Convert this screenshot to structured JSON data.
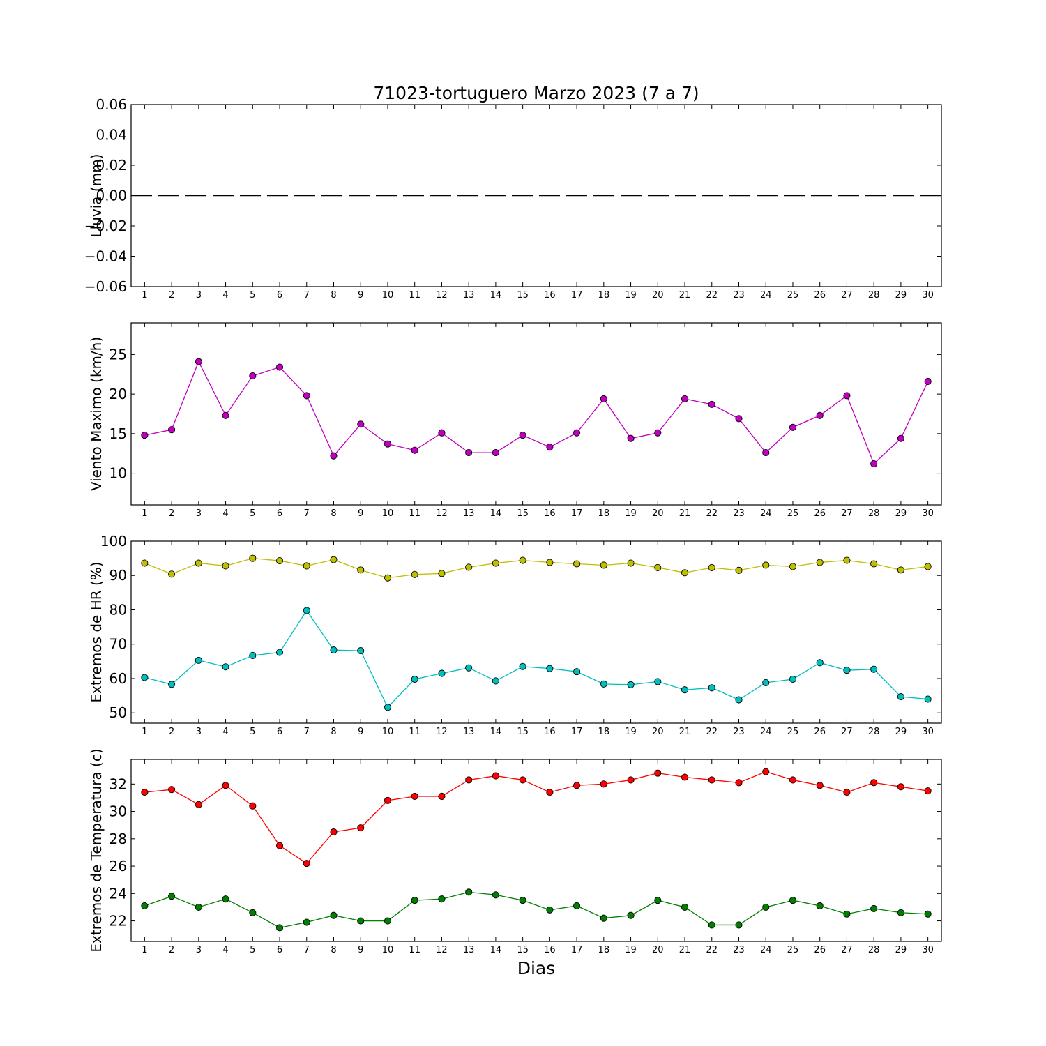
{
  "figure": {
    "title": "71023-tortuguero Marzo 2023  (7 a 7)",
    "xlabel": "Dias"
  },
  "chart_data": [
    {
      "id": "lluvia",
      "type": "line",
      "ylabel": "Lluvia (mm)",
      "x": [
        1,
        2,
        3,
        4,
        5,
        6,
        7,
        8,
        9,
        10,
        11,
        12,
        13,
        14,
        15,
        16,
        17,
        18,
        19,
        20,
        21,
        22,
        23,
        24,
        25,
        26,
        27,
        28,
        29,
        30
      ],
      "xlim": [
        0.5,
        30.5
      ],
      "ylim": [
        -0.06,
        0.06
      ],
      "yticks": [
        0.06,
        0.04,
        0.02,
        0.0,
        -0.02,
        -0.04,
        -0.06
      ],
      "ytick_labels": [
        "0.06",
        "0.04",
        "0.02",
        "0.00",
        "−0.02",
        "−0.04",
        "−0.06"
      ],
      "series": [
        {
          "color": "#000000",
          "style": "dashed",
          "marker": false,
          "values": [
            0,
            0,
            0,
            0,
            0,
            0,
            0,
            0,
            0,
            0,
            0,
            0,
            0,
            0,
            0,
            0,
            0,
            0,
            0,
            0,
            0,
            0,
            0,
            0,
            0,
            0,
            0,
            0,
            0,
            0
          ]
        }
      ]
    },
    {
      "id": "viento",
      "type": "line",
      "ylabel": "Viento Maximo (km/h)",
      "x": [
        1,
        2,
        3,
        4,
        5,
        6,
        7,
        8,
        9,
        10,
        11,
        12,
        13,
        14,
        15,
        16,
        17,
        18,
        19,
        20,
        21,
        22,
        23,
        24,
        25,
        26,
        27,
        28,
        29,
        30
      ],
      "xlim": [
        0.5,
        30.5
      ],
      "ylim": [
        6,
        29
      ],
      "yticks": [
        10,
        15,
        20,
        25
      ],
      "ytick_labels": [
        "10",
        "15",
        "20",
        "25"
      ],
      "series": [
        {
          "color": "#bf00bf",
          "marker": true,
          "values": [
            14.8,
            15.5,
            24.1,
            17.3,
            22.3,
            23.4,
            19.8,
            12.2,
            16.2,
            13.7,
            12.9,
            15.1,
            12.6,
            12.6,
            14.8,
            13.3,
            15.1,
            19.4,
            14.4,
            15.1,
            19.4,
            18.7,
            16.9,
            12.6,
            15.8,
            17.3,
            19.8,
            11.2,
            14.4,
            21.6
          ]
        }
      ]
    },
    {
      "id": "humedad",
      "type": "line",
      "ylabel": "Extremos de HR (%)",
      "x": [
        1,
        2,
        3,
        4,
        5,
        6,
        7,
        8,
        9,
        10,
        11,
        12,
        13,
        14,
        15,
        16,
        17,
        18,
        19,
        20,
        21,
        22,
        23,
        24,
        25,
        26,
        27,
        28,
        29,
        30
      ],
      "xlim": [
        0.5,
        30.5
      ],
      "ylim": [
        47,
        100
      ],
      "yticks": [
        50,
        60,
        70,
        80,
        90,
        100
      ],
      "ytick_labels": [
        "50",
        "60",
        "70",
        "80",
        "90",
        "100"
      ],
      "series": [
        {
          "color": "#bfbf00",
          "marker": true,
          "values": [
            93.6,
            90.4,
            93.6,
            92.8,
            95.0,
            94.3,
            92.8,
            94.6,
            91.6,
            89.3,
            90.3,
            90.6,
            92.4,
            93.6,
            94.4,
            93.8,
            93.4,
            93.0,
            93.6,
            92.3,
            90.8,
            92.3,
            91.5,
            93.0,
            92.6,
            93.8,
            94.4,
            93.4,
            91.6,
            92.6
          ]
        },
        {
          "color": "#00bfbf",
          "marker": true,
          "values": [
            60.3,
            58.3,
            65.3,
            63.4,
            66.7,
            67.6,
            79.8,
            68.3,
            68.1,
            51.6,
            59.8,
            61.5,
            63.1,
            59.3,
            63.5,
            62.9,
            62.0,
            58.4,
            58.2,
            59.1,
            56.7,
            57.3,
            53.8,
            58.8,
            59.8,
            64.6,
            62.4,
            62.7,
            54.7,
            54.0
          ]
        }
      ]
    },
    {
      "id": "temperatura",
      "type": "line",
      "ylabel": "Extremos de Temperatura (c)",
      "x": [
        1,
        2,
        3,
        4,
        5,
        6,
        7,
        8,
        9,
        10,
        11,
        12,
        13,
        14,
        15,
        16,
        17,
        18,
        19,
        20,
        21,
        22,
        23,
        24,
        25,
        26,
        27,
        28,
        29,
        30
      ],
      "xlim": [
        0.5,
        30.5
      ],
      "ylim": [
        20.5,
        33.8
      ],
      "yticks": [
        22,
        24,
        26,
        28,
        30,
        32
      ],
      "ytick_labels": [
        "22",
        "24",
        "26",
        "28",
        "30",
        "32"
      ],
      "series": [
        {
          "color": "#ff0000",
          "marker": true,
          "values": [
            31.4,
            31.6,
            30.5,
            31.9,
            30.4,
            27.5,
            26.2,
            28.5,
            28.8,
            30.8,
            31.1,
            31.1,
            32.3,
            32.6,
            32.3,
            31.4,
            31.9,
            32.0,
            32.3,
            32.8,
            32.5,
            32.3,
            32.1,
            32.9,
            32.3,
            31.9,
            31.4,
            32.1,
            31.8,
            31.5
          ]
        },
        {
          "color": "#007f00",
          "marker": true,
          "values": [
            23.1,
            23.8,
            23.0,
            23.6,
            22.6,
            21.5,
            21.9,
            22.4,
            22.0,
            22.0,
            23.5,
            23.6,
            24.1,
            23.9,
            23.5,
            22.8,
            23.1,
            22.2,
            22.4,
            23.5,
            23.0,
            21.7,
            21.7,
            23.0,
            23.5,
            23.1,
            22.5,
            22.9,
            22.6,
            22.5
          ]
        }
      ]
    }
  ]
}
